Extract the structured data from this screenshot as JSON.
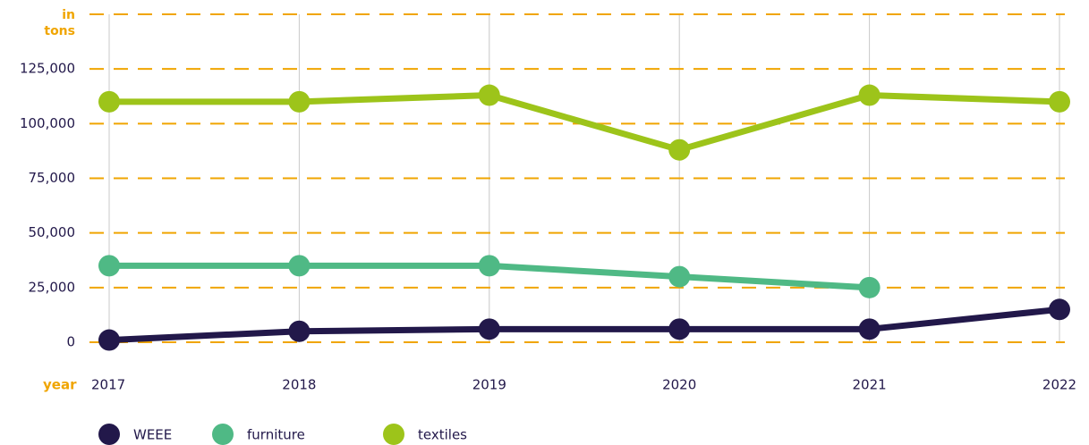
{
  "chart_data": {
    "type": "line",
    "ylabel": "in tons",
    "xlabel": "year",
    "categories": [
      "2017",
      "2018",
      "2019",
      "2020",
      "2021",
      "2022"
    ],
    "series": [
      {
        "name": "WEEE",
        "color": "#22184a",
        "values": [
          1000,
          5000,
          6000,
          6000,
          6000,
          15000
        ]
      },
      {
        "name": "furniture",
        "color": "#4fb985",
        "values": [
          35000,
          35000,
          35000,
          30000,
          25000,
          null
        ]
      },
      {
        "name": "textiles",
        "color": "#9dc41a",
        "values": [
          110000,
          110000,
          113000,
          88000,
          113000,
          110000
        ]
      }
    ],
    "ylim": [
      0,
      150000
    ],
    "yticks": [
      {
        "value": 0,
        "label": "0"
      },
      {
        "value": 25000,
        "label": "25,000"
      },
      {
        "value": 50000,
        "label": "50,000"
      },
      {
        "value": 75000,
        "label": "75,000"
      },
      {
        "value": 100000,
        "label": "100,000"
      },
      {
        "value": 125000,
        "label": "125,000"
      }
    ],
    "grid": true
  }
}
